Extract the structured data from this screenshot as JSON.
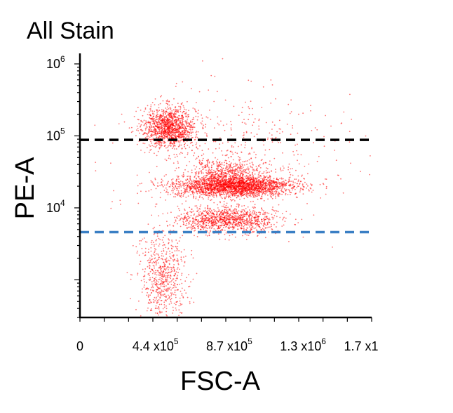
{
  "chart_data": {
    "type": "scatter",
    "title": "All Stain",
    "xlabel": "FSC-A",
    "ylabel": "PE-A",
    "xlim": [
      0,
      1700000
    ],
    "y_scale": "log",
    "ylim": [
      300,
      1400000
    ],
    "x_ticks": [
      {
        "value": 0,
        "label": "0",
        "sup": ""
      },
      {
        "value": 440000,
        "label": "4.4 x10",
        "sup": "5"
      },
      {
        "value": 870000,
        "label": "8.7 x10",
        "sup": "5"
      },
      {
        "value": 1300000,
        "label": "1.3 x10",
        "sup": "6"
      },
      {
        "value": 1700000,
        "label": "1.7 x1",
        "sup": ""
      }
    ],
    "y_ticks": [
      {
        "value": 10000,
        "label": "10",
        "sup": "4"
      },
      {
        "value": 100000,
        "label": "10",
        "sup": "5"
      },
      {
        "value": 1000000,
        "label": "10",
        "sup": "6"
      }
    ],
    "gates": [
      {
        "name": "upper-gate",
        "y": 88000,
        "color": "#000000"
      },
      {
        "name": "lower-gate",
        "y": 4600,
        "color": "#3a7fc4"
      }
    ],
    "point_color": "#ff0000",
    "populations": [
      {
        "name": "high-PE",
        "x_center": 520000,
        "x_sd": 75000,
        "y_log_center": 5.12,
        "y_log_sd": 0.14,
        "count": 1300
      },
      {
        "name": "main",
        "x_center": 900000,
        "x_sd": 170000,
        "y_log_center": 4.3,
        "y_log_sd": 0.07,
        "count": 2400
      },
      {
        "name": "main-upper",
        "x_center": 860000,
        "x_sd": 110000,
        "y_log_center": 4.5,
        "y_log_sd": 0.09,
        "count": 500
      },
      {
        "name": "low-band",
        "x_center": 860000,
        "x_sd": 140000,
        "y_log_center": 3.83,
        "y_log_sd": 0.09,
        "count": 1100
      },
      {
        "name": "left-tail",
        "x_center": 480000,
        "x_sd": 70000,
        "y_log_center": 3.0,
        "y_log_sd": 0.33,
        "count": 650
      },
      {
        "name": "sparse",
        "x_center": 900000,
        "x_sd": 320000,
        "y_log_center": 4.7,
        "y_log_sd": 0.45,
        "count": 500
      }
    ]
  }
}
